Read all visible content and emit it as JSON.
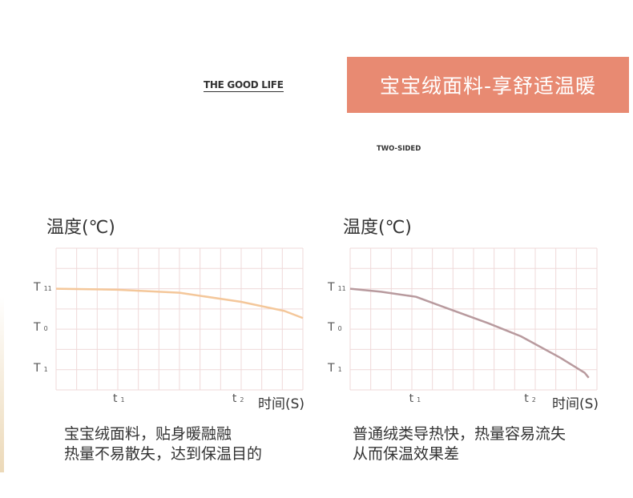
{
  "header": {
    "banner": "宝宝绒面料-享舒适温暖",
    "brand": "THE GOOD LIFE",
    "subtitle": "TWO-SIDED",
    "banner_color": "#e88a72"
  },
  "chart_data": [
    {
      "type": "line",
      "ylabel": "温度(℃)",
      "xlabel": "时间(S)",
      "yticks": [
        {
          "label": "T",
          "sub": "11",
          "level": 5
        },
        {
          "label": "T",
          "sub": "0",
          "level": 3
        },
        {
          "label": "T",
          "sub": "1",
          "level": 1
        }
      ],
      "xticks": [
        {
          "label": "t",
          "sub": "1",
          "at": 3
        },
        {
          "label": "t",
          "sub": "2",
          "at": 8.8
        }
      ],
      "xlim": [
        0,
        12
      ],
      "ylim": [
        0,
        7
      ],
      "grid": true,
      "line_color": "#f4c79a",
      "series": [
        {
          "x": [
            0,
            3,
            6,
            9,
            11.1,
            12
          ],
          "y": [
            5,
            4.95,
            4.8,
            4.35,
            3.9,
            3.55
          ]
        }
      ],
      "caption": [
        "宝宝绒面料，贴身暖融融",
        "热量不易散失，达到保温目的"
      ]
    },
    {
      "type": "line",
      "ylabel": "温度(℃)",
      "xlabel": "时间(S)",
      "yticks": [
        {
          "label": "T",
          "sub": "11",
          "level": 5
        },
        {
          "label": "T",
          "sub": "0",
          "level": 3
        },
        {
          "label": "T",
          "sub": "1",
          "level": 1
        }
      ],
      "xticks": [
        {
          "label": "t",
          "sub": "1",
          "at": 3.1
        },
        {
          "label": "t",
          "sub": "2",
          "at": 8.7
        }
      ],
      "xlim": [
        0,
        12
      ],
      "ylim": [
        0,
        7
      ],
      "grid": true,
      "line_color": "#b89a9e",
      "series": [
        {
          "x": [
            0,
            1.5,
            3.2,
            4.8,
            6.7,
            8.3,
            10.2,
            11.4,
            11.6
          ],
          "y": [
            5,
            4.85,
            4.6,
            4.0,
            3.3,
            2.65,
            1.6,
            0.85,
            0.6
          ]
        }
      ],
      "caption": [
        "普通绒类导热快，热量容易流失",
        "从而保温效果差"
      ]
    }
  ]
}
